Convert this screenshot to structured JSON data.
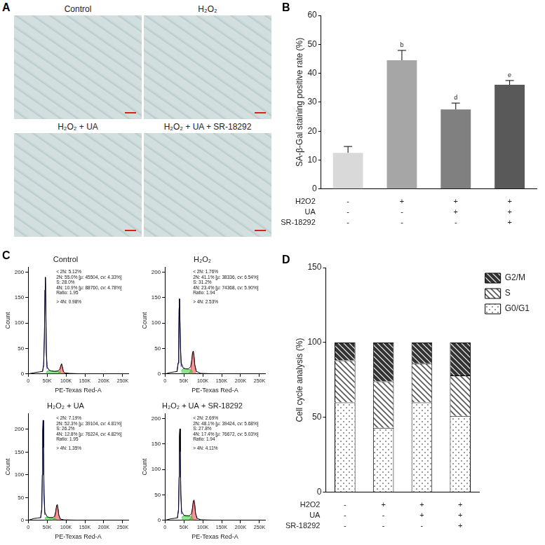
{
  "image_panel": {
    "panel": "A",
    "titles": [
      "Control",
      "H₂O₂",
      "H₂O₂ + UA",
      "H₂O₂ + UA + SR-18292"
    ]
  },
  "chart_data": [
    {
      "panel": "B",
      "type": "bar",
      "categories": [
        null,
        null,
        null,
        null
      ],
      "values": [
        12.5,
        44.5,
        27.5,
        36
      ],
      "errors": [
        2.2,
        3.4,
        2.2,
        1.5
      ],
      "significance": [
        null,
        "b",
        "d",
        "e"
      ],
      "colors": [
        "#d9d9d9",
        "#a6a6a6",
        "#808080",
        "#595959"
      ],
      "y_label": "SA-β-Gal staining positive rate (%)",
      "ylim": [
        0,
        60
      ],
      "yticks": [
        0,
        10,
        20,
        30,
        40,
        50,
        60
      ],
      "grid": false,
      "treatments": [
        {
          "label": "H2O2",
          "signs": [
            "-",
            "+",
            "+",
            "+"
          ]
        },
        {
          "label": "UA",
          "signs": [
            "-",
            "-",
            "+",
            "+"
          ]
        },
        {
          "label": "SR-18292",
          "signs": [
            "-",
            "-",
            "-",
            "+"
          ]
        }
      ]
    },
    {
      "panel": "C",
      "type": "line",
      "title": "Control",
      "x": [
        0,
        20000,
        30000,
        38000,
        41000,
        43000,
        44500,
        45500,
        46500,
        48000,
        50000,
        55000,
        60000,
        70000,
        80000,
        84000,
        86500,
        88500,
        90500,
        93000,
        97000,
        110000,
        150000,
        250000
      ],
      "series": [
        {
          "color": "#000000",
          "type": "line",
          "values": [
            0,
            3,
            4,
            5,
            18,
            75,
            165,
            190,
            150,
            45,
            14,
            8,
            6,
            5,
            6,
            10,
            17,
            20,
            14,
            5,
            2,
            1,
            0,
            0
          ]
        },
        {
          "color": "#1f1fd6",
          "type": "line",
          "values": [
            null,
            null,
            null,
            4,
            17,
            74,
            165,
            190,
            150,
            44,
            10,
            null,
            null,
            null,
            null,
            null,
            null,
            null,
            null,
            null,
            null,
            null,
            null,
            null
          ]
        },
        {
          "color": "#33cc33",
          "type": "area",
          "values": [
            null,
            null,
            null,
            null,
            null,
            null,
            null,
            null,
            null,
            3,
            5,
            7,
            6,
            5,
            5,
            4,
            2,
            null,
            null,
            null,
            null,
            null,
            null,
            null
          ]
        },
        {
          "color": "#e8404a",
          "type": "area",
          "values": [
            null,
            null,
            null,
            null,
            null,
            null,
            null,
            null,
            null,
            null,
            null,
            null,
            null,
            null,
            1,
            6,
            15,
            19,
            14,
            5,
            1,
            null,
            null,
            null
          ]
        }
      ],
      "annotations": [
        "< 2N: 5.12%",
        "2N: 55.0% [μ: 45504, cv: 4.33%]",
        "S: 28.0%",
        "4N: 10.9% [μ: 88760, cv: 4.78%]",
        "Ratio: 1.95",
        "> 4N: 0.98%"
      ],
      "x_label": "PE-Texas Red-A",
      "y_label": "Count",
      "xlim": [
        0,
        265000
      ],
      "xticks": [
        0,
        {
          "value": 50000,
          "label": "50K"
        },
        {
          "value": 100000,
          "label": "100K"
        },
        {
          "value": 150000,
          "label": "150K"
        },
        {
          "value": 200000,
          "label": "200K"
        },
        {
          "value": 250000,
          "label": "250K"
        }
      ],
      "ylim": [
        0,
        210
      ],
      "yticks": [
        0,
        50,
        100,
        150,
        200
      ],
      "grid": false
    },
    {
      "type": "line",
      "title": "H₂O₂",
      "x": [
        0,
        15000,
        25000,
        32000,
        35000,
        36500,
        37500,
        38500,
        39500,
        41000,
        43000,
        48000,
        55000,
        62000,
        68000,
        71000,
        73000,
        75000,
        77000,
        79000,
        83000,
        95000,
        150000,
        250000
      ],
      "series": [
        {
          "color": "#000000",
          "type": "line",
          "values": [
            0,
            3,
            4,
            5,
            22,
            70,
            130,
            148,
            115,
            55,
            22,
            12,
            10,
            10,
            14,
            28,
            42,
            45,
            35,
            18,
            5,
            1,
            0,
            0
          ]
        },
        {
          "color": "#1f1fd6",
          "type": "line",
          "values": [
            null,
            null,
            null,
            4,
            21,
            68,
            128,
            147,
            113,
            50,
            14,
            null,
            null,
            null,
            null,
            null,
            null,
            null,
            null,
            null,
            null,
            null,
            null,
            null
          ]
        },
        {
          "color": "#33cc33",
          "type": "area",
          "values": [
            null,
            null,
            null,
            null,
            null,
            null,
            null,
            null,
            null,
            null,
            6,
            10,
            10,
            9,
            8,
            6,
            3,
            null,
            null,
            null,
            null,
            null,
            null,
            null
          ]
        },
        {
          "color": "#e8404a",
          "type": "area",
          "values": [
            null,
            null,
            null,
            null,
            null,
            null,
            null,
            null,
            null,
            null,
            null,
            null,
            null,
            1,
            5,
            22,
            39,
            44,
            34,
            17,
            4,
            null,
            null,
            null
          ]
        }
      ],
      "annotations": [
        "< 2N: 1.76%",
        "2N: 41.1% [μ: 38336, cv: 6.54%]",
        "S: 31.2%",
        "4N: 23.4% [μ: 74368, cv: 5.90%]",
        "Ratio: 1.94",
        "> 4N: 2.53%"
      ],
      "x_label": "PE-Texas Red-A",
      "y_label": "Count",
      "xlim": [
        0,
        265000
      ],
      "xticks": [
        0,
        {
          "value": 50000,
          "label": "50K"
        },
        {
          "value": 100000,
          "label": "100K"
        },
        {
          "value": 150000,
          "label": "150K"
        },
        {
          "value": 200000,
          "label": "200K"
        },
        {
          "value": 250000,
          "label": "250K"
        }
      ],
      "ylim": [
        0,
        210
      ],
      "yticks": [
        0,
        50,
        100,
        150,
        200
      ],
      "grid": false
    },
    {
      "type": "line",
      "title": "H₂O₂ + UA",
      "x": [
        0,
        15000,
        25000,
        33000,
        36000,
        37500,
        38500,
        39500,
        40500,
        42000,
        44000,
        50000,
        57000,
        65000,
        70000,
        73000,
        75000,
        77000,
        79000,
        81000,
        85000,
        95000,
        150000,
        250000
      ],
      "series": [
        {
          "color": "#000000",
          "type": "line",
          "values": [
            0,
            4,
            5,
            6,
            25,
            100,
            195,
            220,
            160,
            60,
            18,
            8,
            6,
            6,
            9,
            20,
            32,
            35,
            26,
            12,
            3,
            1,
            0,
            0
          ]
        },
        {
          "color": "#1f1fd6",
          "type": "line",
          "values": [
            null,
            null,
            null,
            5,
            24,
            99,
            195,
            220,
            160,
            56,
            12,
            null,
            null,
            null,
            null,
            null,
            null,
            null,
            null,
            null,
            null,
            null,
            null,
            null
          ]
        },
        {
          "color": "#33cc33",
          "type": "area",
          "values": [
            null,
            null,
            null,
            null,
            null,
            null,
            null,
            null,
            null,
            null,
            5,
            7,
            6,
            5,
            4,
            3,
            2,
            null,
            null,
            null,
            null,
            null,
            null,
            null
          ]
        },
        {
          "color": "#e8404a",
          "type": "area",
          "values": [
            null,
            null,
            null,
            null,
            null,
            null,
            null,
            null,
            null,
            null,
            null,
            null,
            null,
            1,
            5,
            17,
            30,
            34,
            25,
            11,
            2,
            null,
            null,
            null
          ]
        }
      ],
      "annotations": [
        "< 2N: 7.19%",
        "2N: 52.3% [μ: 39104, cv: 4.81%]",
        "S: 26.2%",
        "4N: 12.8% [μ: 76224, cv: 4.82%]",
        "Ratio: 1.95",
        "> 4N: 1.35%"
      ],
      "x_label": "PE-Texas Red-A",
      "y_label": "Count",
      "xlim": [
        0,
        265000
      ],
      "xticks": [
        0,
        {
          "value": 50000,
          "label": "50K"
        },
        {
          "value": 100000,
          "label": "100K"
        },
        {
          "value": 150000,
          "label": "150K"
        },
        {
          "value": 200000,
          "label": "200K"
        },
        {
          "value": 250000,
          "label": "250K"
        }
      ],
      "ylim": [
        0,
        235
      ],
      "yticks": [
        0,
        50,
        100,
        150,
        200
      ],
      "grid": false
    },
    {
      "type": "line",
      "title": "H₂O₂ + UA + SR-18292",
      "x": [
        0,
        15000,
        25000,
        33000,
        36000,
        37500,
        38500,
        39500,
        40500,
        42000,
        44000,
        50000,
        57000,
        65000,
        70000,
        73000,
        75000,
        77000,
        79000,
        81000,
        85000,
        95000,
        150000,
        250000
      ],
      "series": [
        {
          "color": "#000000",
          "type": "line",
          "values": [
            0,
            3,
            4,
            5,
            22,
            85,
            165,
            180,
            135,
            55,
            18,
            10,
            9,
            9,
            13,
            25,
            38,
            40,
            30,
            14,
            4,
            1,
            0,
            0
          ]
        },
        {
          "color": "#1f1fd6",
          "type": "line",
          "values": [
            null,
            null,
            null,
            4,
            21,
            84,
            165,
            180,
            135,
            51,
            12,
            null,
            null,
            null,
            null,
            null,
            null,
            null,
            null,
            null,
            null,
            null,
            null,
            null
          ]
        },
        {
          "color": "#33cc33",
          "type": "area",
          "values": [
            null,
            null,
            null,
            null,
            null,
            null,
            null,
            null,
            null,
            null,
            6,
            9,
            9,
            8,
            7,
            5,
            3,
            null,
            null,
            null,
            null,
            null,
            null,
            null
          ]
        },
        {
          "color": "#e8404a",
          "type": "area",
          "values": [
            null,
            null,
            null,
            null,
            null,
            null,
            null,
            null,
            null,
            null,
            null,
            null,
            null,
            1,
            6,
            20,
            35,
            38,
            29,
            13,
            3,
            null,
            null,
            null
          ]
        }
      ],
      "annotations": [
        "< 2N: 2.69%",
        "2N: 48.1% [μ: 39424, cv: 5.68%]",
        "S: 27.8%",
        "4N: 17.4% [μ: 76672, cv: 5.03%]",
        "Ratio: 1.94",
        "> 4N: 4.11%"
      ],
      "x_label": "PE-Texas Red-A",
      "y_label": "Count",
      "xlim": [
        0,
        265000
      ],
      "xticks": [
        0,
        {
          "value": 50000,
          "label": "50K"
        },
        {
          "value": 100000,
          "label": "100K"
        },
        {
          "value": 150000,
          "label": "150K"
        },
        {
          "value": 200000,
          "label": "200K"
        },
        {
          "value": 250000,
          "label": "250K"
        }
      ],
      "ylim": [
        0,
        210
      ],
      "yticks": [
        0,
        50,
        100,
        150,
        200
      ],
      "grid": false
    },
    {
      "panel": "D",
      "type": "bar",
      "stacked": true,
      "categories": [
        null,
        null,
        null,
        null
      ],
      "series": [
        {
          "name": "G0/G1",
          "color": "#9a9a9a",
          "values": [
            60,
            43,
            60,
            51
          ]
        },
        {
          "name": "S",
          "color": "#555555",
          "values": [
            28,
            31,
            26,
            27
          ]
        },
        {
          "name": "G2/M",
          "color": "#333333",
          "values": [
            12,
            26,
            14,
            22
          ]
        }
      ],
      "y_label": "Cell cycle analysis (%)",
      "ylim": [
        0,
        150
      ],
      "yticks": [
        0,
        50,
        100,
        150
      ],
      "grid": false,
      "legend": "top-right",
      "treatments": [
        {
          "label": "H2O2",
          "signs": [
            "-",
            "+",
            "+",
            "+"
          ]
        },
        {
          "label": "UA",
          "signs": [
            "-",
            "-",
            "+",
            "+"
          ]
        },
        {
          "label": "SR-18292",
          "signs": [
            "-",
            "-",
            "-",
            "+"
          ]
        }
      ]
    }
  ]
}
